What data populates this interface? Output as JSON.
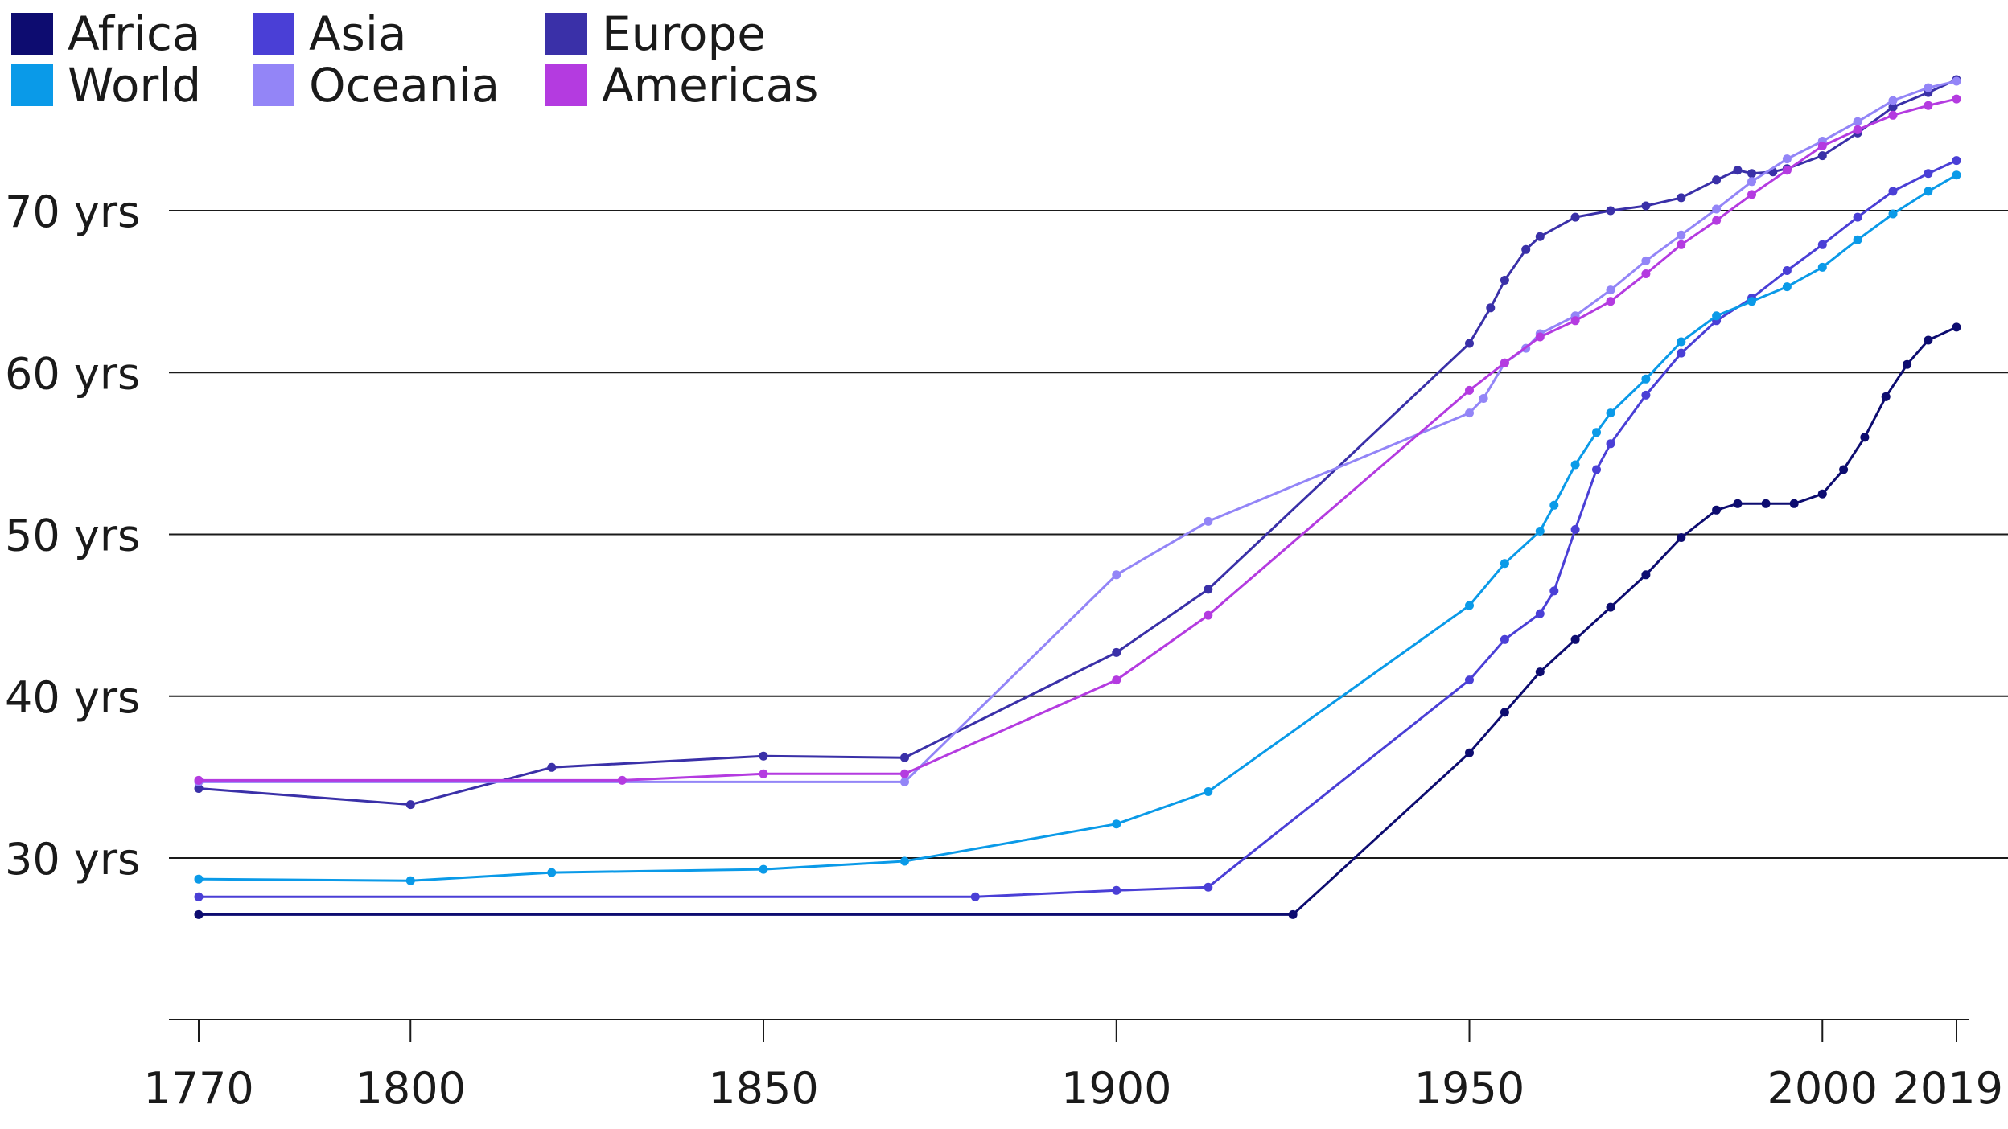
{
  "legend": [
    {
      "name": "Africa",
      "color": "#0d0c70"
    },
    {
      "name": "Asia",
      "color": "#4a3fd6"
    },
    {
      "name": "Europe",
      "color": "#3a30a8"
    },
    {
      "name": "World",
      "color": "#0a9ae8"
    },
    {
      "name": "Oceania",
      "color": "#9385f7"
    },
    {
      "name": "Americas",
      "color": "#b43be0"
    }
  ],
  "chart_data": {
    "type": "line",
    "title": "",
    "xlabel": "",
    "ylabel": "",
    "x_ticks": [
      1770,
      1800,
      1850,
      1900,
      1950,
      2000,
      2019
    ],
    "y_ticks": [
      30,
      40,
      50,
      60,
      70
    ],
    "y_tick_labels": [
      "30 yrs",
      "40 yrs",
      "50 yrs",
      "60 yrs",
      "70 yrs"
    ],
    "xlim": [
      1770,
      2019
    ],
    "ylim": [
      20,
      75
    ],
    "grid": "horizontal",
    "legend_position": "top-left",
    "series": [
      {
        "name": "Africa",
        "color": "#0d0c70",
        "points": [
          [
            1770,
            26.5
          ],
          [
            1925,
            26.5
          ],
          [
            1950,
            36.5
          ],
          [
            1955,
            39
          ],
          [
            1960,
            41.5
          ],
          [
            1965,
            43.5
          ],
          [
            1970,
            45.5
          ],
          [
            1975,
            47.5
          ],
          [
            1980,
            49.8
          ],
          [
            1985,
            51.5
          ],
          [
            1988,
            51.9
          ],
          [
            1992,
            51.9
          ],
          [
            1996,
            51.9
          ],
          [
            2000,
            52.5
          ],
          [
            2003,
            54
          ],
          [
            2006,
            56
          ],
          [
            2009,
            58.5
          ],
          [
            2012,
            60.5
          ],
          [
            2015,
            62
          ],
          [
            2019,
            62.8
          ]
        ]
      },
      {
        "name": "Asia",
        "color": "#4a3fd6",
        "points": [
          [
            1770,
            27.6
          ],
          [
            1880,
            27.6
          ],
          [
            1900,
            28
          ],
          [
            1913,
            28.2
          ],
          [
            1950,
            41
          ],
          [
            1955,
            43.5
          ],
          [
            1960,
            45.1
          ],
          [
            1962,
            46.5
          ],
          [
            1965,
            50.3
          ],
          [
            1968,
            54
          ],
          [
            1970,
            55.6
          ],
          [
            1975,
            58.6
          ],
          [
            1980,
            61.2
          ],
          [
            1985,
            63.2
          ],
          [
            1990,
            64.6
          ],
          [
            1995,
            66.3
          ],
          [
            2000,
            67.9
          ],
          [
            2005,
            69.6
          ],
          [
            2010,
            71.2
          ],
          [
            2015,
            72.3
          ],
          [
            2019,
            73.1
          ]
        ]
      },
      {
        "name": "Europe",
        "color": "#3a30a8",
        "points": [
          [
            1770,
            34.3
          ],
          [
            1800,
            33.3
          ],
          [
            1820,
            35.6
          ],
          [
            1850,
            36.3
          ],
          [
            1870,
            36.2
          ],
          [
            1900,
            42.7
          ],
          [
            1913,
            46.6
          ],
          [
            1950,
            61.8
          ],
          [
            1953,
            64
          ],
          [
            1955,
            65.7
          ],
          [
            1958,
            67.6
          ],
          [
            1960,
            68.4
          ],
          [
            1965,
            69.6
          ],
          [
            1970,
            70
          ],
          [
            1975,
            70.3
          ],
          [
            1980,
            70.8
          ],
          [
            1985,
            71.9
          ],
          [
            1988,
            72.5
          ],
          [
            1990,
            72.3
          ],
          [
            1993,
            72.4
          ],
          [
            1995,
            72.6
          ],
          [
            2000,
            73.4
          ],
          [
            2005,
            74.8
          ],
          [
            2010,
            76.4
          ],
          [
            2015,
            77.3
          ],
          [
            2019,
            78.1
          ]
        ]
      },
      {
        "name": "World",
        "color": "#0a9ae8",
        "points": [
          [
            1770,
            28.7
          ],
          [
            1800,
            28.6
          ],
          [
            1820,
            29.1
          ],
          [
            1850,
            29.3
          ],
          [
            1870,
            29.8
          ],
          [
            1900,
            32.1
          ],
          [
            1913,
            34.1
          ],
          [
            1950,
            45.6
          ],
          [
            1955,
            48.2
          ],
          [
            1960,
            50.2
          ],
          [
            1962,
            51.8
          ],
          [
            1965,
            54.3
          ],
          [
            1968,
            56.3
          ],
          [
            1970,
            57.5
          ],
          [
            1975,
            59.6
          ],
          [
            1980,
            61.9
          ],
          [
            1985,
            63.5
          ],
          [
            1990,
            64.4
          ],
          [
            1995,
            65.3
          ],
          [
            2000,
            66.5
          ],
          [
            2005,
            68.2
          ],
          [
            2010,
            69.8
          ],
          [
            2015,
            71.2
          ],
          [
            2019,
            72.2
          ]
        ]
      },
      {
        "name": "Oceania",
        "color": "#9385f7",
        "points": [
          [
            1770,
            34.7
          ],
          [
            1870,
            34.7
          ],
          [
            1900,
            47.5
          ],
          [
            1913,
            50.8
          ],
          [
            1950,
            57.5
          ],
          [
            1952,
            58.4
          ],
          [
            1955,
            60.6
          ],
          [
            1958,
            61.5
          ],
          [
            1960,
            62.4
          ],
          [
            1965,
            63.5
          ],
          [
            1970,
            65.1
          ],
          [
            1975,
            66.9
          ],
          [
            1980,
            68.5
          ],
          [
            1985,
            70.1
          ],
          [
            1990,
            71.8
          ],
          [
            1995,
            73.2
          ],
          [
            2000,
            74.3
          ],
          [
            2005,
            75.5
          ],
          [
            2010,
            76.8
          ],
          [
            2015,
            77.6
          ],
          [
            2019,
            78
          ]
        ]
      },
      {
        "name": "Americas",
        "color": "#b43be0",
        "points": [
          [
            1770,
            34.8
          ],
          [
            1830,
            34.8
          ],
          [
            1850,
            35.2
          ],
          [
            1870,
            35.2
          ],
          [
            1900,
            41
          ],
          [
            1913,
            45
          ],
          [
            1950,
            58.9
          ],
          [
            1955,
            60.6
          ],
          [
            1960,
            62.2
          ],
          [
            1965,
            63.2
          ],
          [
            1970,
            64.4
          ],
          [
            1975,
            66.1
          ],
          [
            1980,
            67.9
          ],
          [
            1985,
            69.4
          ],
          [
            1990,
            71
          ],
          [
            1995,
            72.5
          ],
          [
            2000,
            74
          ],
          [
            2005,
            75
          ],
          [
            2010,
            75.9
          ],
          [
            2015,
            76.5
          ],
          [
            2019,
            76.9
          ]
        ]
      }
    ]
  }
}
